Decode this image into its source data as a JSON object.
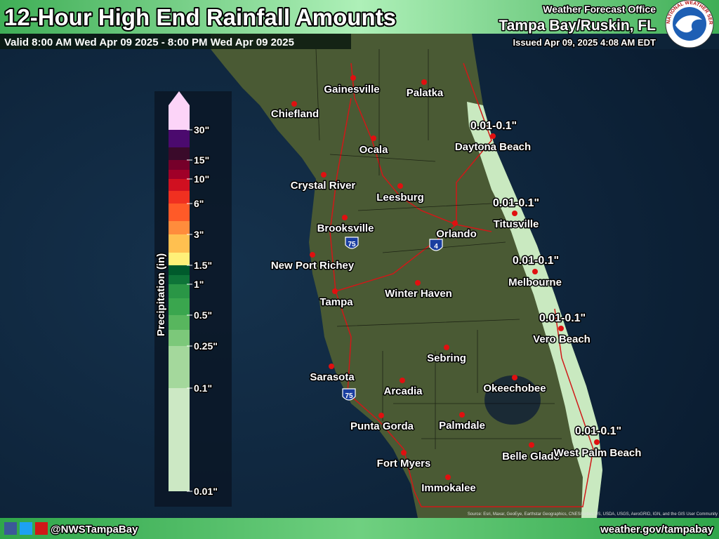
{
  "header": {
    "title": "12-Hour High End Rainfall Amounts",
    "valid": "Valid 8:00 AM Wed Apr 09 2025 - 8:00 PM Wed Apr 09 2025",
    "office": "Weather Forecast Office",
    "location": "Tampa Bay/Ruskin, FL",
    "issued": "Issued Apr 09, 2025 4:08 AM EDT",
    "logo_text": "NATIONAL WEATHER SERVICE"
  },
  "legend": {
    "title": "Precipitation (in)",
    "labels": [
      "30\"",
      "15\"",
      "10\"",
      "6\"",
      "3\"",
      "1.5\"",
      "1\"",
      "0.5\"",
      "0.25\"",
      "0.1\"",
      "0.01\""
    ]
  },
  "cities": [
    "Gainesville",
    "Palatka",
    "Chiefland",
    "Ocala",
    "Daytona Beach",
    "Crystal River",
    "Leesburg",
    "Titusville",
    "Orlando",
    "Brooksville",
    "New Port Richey",
    "Melbourne",
    "Winter Haven",
    "Tampa",
    "Vero Beach",
    "Sebring",
    "Sarasota",
    "Arcadia",
    "Okeechobee",
    "Punta Gorda",
    "Palmdale",
    "Belle Glade",
    "West Palm Beach",
    "Fort Myers",
    "Immokalee"
  ],
  "rainfall_labels": [
    "0.01-0.1\"",
    "0.01-0.1\"",
    "0.01-0.1\"",
    "0.01-0.1\"",
    "0.01-0.1\""
  ],
  "interstates": [
    "75",
    "4",
    "75"
  ],
  "attribution": "Source: Esri, Maxar, GeoEye, Earthstar Geographics, CNES/Airbus DS, USDA, USGS, AeroGRID, IGN, and the GIS User Community",
  "footer": {
    "social": "@NWSTampaBay",
    "website": "weather.gov/tampabay"
  }
}
